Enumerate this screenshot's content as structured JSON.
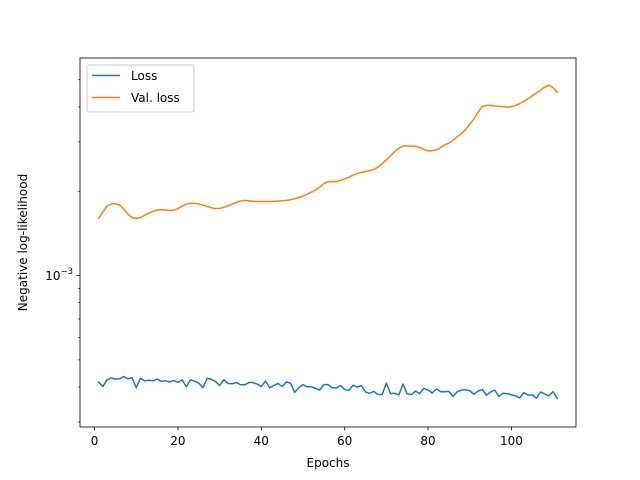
{
  "chart_data": {
    "type": "line",
    "xlabel": "Epochs",
    "ylabel": "Negative log-likelihood",
    "x_ticks": [
      0,
      20,
      40,
      60,
      80,
      100
    ],
    "x_tick_labels": [
      "0",
      "20",
      "40",
      "60",
      "80",
      "100"
    ],
    "xlim": [
      -3.5,
      115.5
    ],
    "y_scale": "log",
    "ylim": [
      0.000288,
      0.00598
    ],
    "y_tick_labels": [
      {
        "value": 0.001,
        "base": "10",
        "exp": "−3"
      }
    ],
    "legend": "top-left",
    "grid": false,
    "series": [
      {
        "name": "Loss",
        "color": "#1f77b4",
        "x": [
          1,
          2,
          3,
          4,
          5,
          6,
          7,
          8,
          9,
          10,
          11,
          12,
          13,
          14,
          15,
          16,
          17,
          18,
          19,
          20,
          21,
          22,
          23,
          24,
          25,
          26,
          27,
          28,
          29,
          30,
          31,
          32,
          33,
          34,
          35,
          36,
          37,
          38,
          39,
          40,
          41,
          42,
          43,
          44,
          45,
          46,
          47,
          48,
          49,
          50,
          51,
          52,
          53,
          54,
          55,
          56,
          57,
          58,
          59,
          60,
          61,
          62,
          63,
          64,
          65,
          66,
          67,
          68,
          69,
          70,
          71,
          72,
          73,
          74,
          75,
          76,
          77,
          78,
          79,
          80,
          81,
          82,
          83,
          84,
          85,
          86,
          87,
          88,
          89,
          90,
          91,
          92,
          93,
          94,
          95,
          96,
          97,
          98,
          99,
          100,
          101,
          102,
          103,
          104,
          105,
          106,
          107,
          108,
          109,
          110,
          111
        ],
        "y": [
          0.000416,
          0.000402,
          0.000425,
          0.000431,
          0.000427,
          0.000428,
          0.000436,
          0.000428,
          0.000432,
          0.000398,
          0.00043,
          0.000421,
          0.000423,
          0.000421,
          0.000427,
          0.000419,
          0.000421,
          0.000417,
          0.000422,
          0.000416,
          0.000424,
          0.000401,
          0.000424,
          0.00042,
          0.000413,
          0.000398,
          0.00043,
          0.000426,
          0.000419,
          0.000405,
          0.000425,
          0.000412,
          0.000411,
          0.000415,
          0.000408,
          0.000407,
          0.000415,
          0.000415,
          0.00041,
          0.000402,
          0.00042,
          0.000398,
          0.000405,
          0.000412,
          0.000402,
          0.000417,
          0.000413,
          0.000383,
          0.000398,
          0.000408,
          0.000401,
          0.000401,
          0.000396,
          0.00039,
          0.000408,
          0.000408,
          0.000398,
          0.000397,
          0.000405,
          0.000392,
          0.000389,
          0.000406,
          0.0004,
          0.000405,
          0.000384,
          0.00038,
          0.000386,
          0.000376,
          0.000376,
          0.000413,
          0.000379,
          0.00038,
          0.000375,
          0.00041,
          0.000378,
          0.000376,
          0.000387,
          0.000379,
          0.000396,
          0.00039,
          0.000381,
          0.000394,
          0.000385,
          0.000385,
          0.000386,
          0.00037,
          0.000385,
          0.00039,
          0.000391,
          0.000388,
          0.000377,
          0.000387,
          0.000392,
          0.000374,
          0.000384,
          0.00039,
          0.00037,
          0.00038,
          0.000379,
          0.000375,
          0.000372,
          0.000366,
          0.000382,
          0.000374,
          0.000375,
          0.000365,
          0.000384,
          0.000378,
          0.000372,
          0.000385,
          0.000364
        ]
      },
      {
        "name": "Val. loss",
        "color": "#ff7f0e",
        "x": [
          1,
          2,
          3,
          4,
          5,
          6,
          7,
          8,
          9,
          10,
          11,
          12,
          13,
          14,
          15,
          16,
          17,
          18,
          19,
          20,
          21,
          22,
          23,
          24,
          25,
          26,
          27,
          28,
          29,
          30,
          31,
          32,
          33,
          34,
          35,
          36,
          37,
          38,
          39,
          40,
          41,
          42,
          43,
          44,
          45,
          46,
          47,
          48,
          49,
          50,
          51,
          52,
          53,
          54,
          55,
          56,
          57,
          58,
          59,
          60,
          61,
          62,
          63,
          64,
          65,
          66,
          67,
          68,
          69,
          70,
          71,
          72,
          73,
          74,
          75,
          76,
          77,
          78,
          79,
          80,
          81,
          82,
          83,
          84,
          85,
          86,
          87,
          88,
          89,
          90,
          91,
          92,
          93,
          94,
          95,
          96,
          97,
          98,
          99,
          100,
          101,
          102,
          103,
          104,
          105,
          106,
          107,
          108,
          109,
          110,
          111
        ],
        "y": [
          0.001605,
          0.001685,
          0.00177,
          0.001803,
          0.001805,
          0.001785,
          0.001728,
          0.001658,
          0.001609,
          0.0016,
          0.00161,
          0.00164,
          0.00167,
          0.001695,
          0.001712,
          0.001718,
          0.001715,
          0.001707,
          0.00171,
          0.001735,
          0.00177,
          0.0018,
          0.001812,
          0.00181,
          0.0018,
          0.001785,
          0.001768,
          0.001745,
          0.001735,
          0.001738,
          0.001752,
          0.001775,
          0.0018,
          0.001825,
          0.001845,
          0.001855,
          0.00185,
          0.00184,
          0.001838,
          0.001838,
          0.001838,
          0.001839,
          0.001842,
          0.001846,
          0.00185,
          0.001855,
          0.001865,
          0.00188,
          0.0019,
          0.001922,
          0.00195,
          0.001985,
          0.00202,
          0.00207,
          0.00213,
          0.00216,
          0.002165,
          0.002165,
          0.00219,
          0.002215,
          0.002245,
          0.00228,
          0.002315,
          0.002335,
          0.00235,
          0.00237,
          0.00239,
          0.00244,
          0.00251,
          0.00259,
          0.00268,
          0.00277,
          0.00285,
          0.0029,
          0.002903,
          0.002898,
          0.002895,
          0.00287,
          0.002815,
          0.00279,
          0.00279,
          0.00281,
          0.00286,
          0.00293,
          0.00297,
          0.00304,
          0.00313,
          0.00321,
          0.00332,
          0.00347,
          0.00362,
          0.00383,
          0.00401,
          0.00405,
          0.00405,
          0.00403,
          0.00402,
          0.00401,
          0.003995,
          0.00401,
          0.00405,
          0.00411,
          0.00419,
          0.00428,
          0.00438,
          0.00448,
          0.00459,
          0.00471,
          0.00478,
          0.00469,
          0.00451
        ]
      }
    ]
  }
}
